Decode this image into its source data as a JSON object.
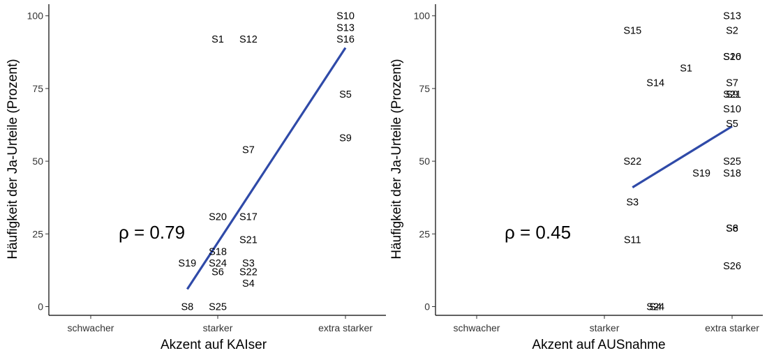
{
  "chart_data": [
    {
      "type": "scatter",
      "xlabel": "Akzent auf KAIser",
      "ylabel": "Häufigkeit der Ja-Urteile (Prozent)",
      "x_categories": [
        "schwacher",
        "starker",
        "extra starker"
      ],
      "y_ticks": [
        0,
        25,
        50,
        75,
        100
      ],
      "ylim": [
        -3,
        104
      ],
      "annotation": "ρ = 0.79",
      "grid": false,
      "points": [
        {
          "label": "S10",
          "x": 2.96,
          "y": 100
        },
        {
          "label": "S13",
          "x": 2.96,
          "y": 96
        },
        {
          "label": "S1",
          "x": 1.0,
          "y": 92
        },
        {
          "label": "S12",
          "x": 1.24,
          "y": 92
        },
        {
          "label": "S16",
          "x": 2.74,
          "y": 92
        },
        {
          "label": "S5",
          "x": 2.96,
          "y": 73
        },
        {
          "label": "S9",
          "x": 2.66,
          "y": 58
        },
        {
          "label": "S7",
          "x": 1.24,
          "y": 54
        },
        {
          "label": "S20",
          "x": 1.0,
          "y": 31
        },
        {
          "label": "S17",
          "x": 1.24,
          "y": 31
        },
        {
          "label": "S21",
          "x": 1.24,
          "y": 23
        },
        {
          "label": "S18",
          "x": 1.0,
          "y": 19
        },
        {
          "label": "S19",
          "x": 0.76,
          "y": 15
        },
        {
          "label": "S24",
          "x": 1.0,
          "y": 15
        },
        {
          "label": "S3",
          "x": 1.24,
          "y": 15
        },
        {
          "label": "S6",
          "x": 1.0,
          "y": 12
        },
        {
          "label": "S22",
          "x": 1.24,
          "y": 12
        },
        {
          "label": "S4",
          "x": 1.24,
          "y": 8
        },
        {
          "label": "S8",
          "x": 0.76,
          "y": 0
        },
        {
          "label": "S25",
          "x": 1.0,
          "y": 0
        }
      ],
      "regression": {
        "x": [
          0.76,
          2.96
        ],
        "y": [
          6,
          89
        ],
        "color": "#2f4aa8"
      }
    },
    {
      "type": "scatter",
      "xlabel": "Akzent auf AUSnahme",
      "ylabel": "Häufigkeit der Ja-Urteile (Prozent)",
      "x_categories": [
        "schwacher",
        "starker",
        "extra starker"
      ],
      "y_ticks": [
        0,
        25,
        50,
        75,
        100
      ],
      "ylim": [
        -3,
        104
      ],
      "annotation": "ρ = 0.45",
      "grid": false,
      "points": [
        {
          "label": "S13",
          "x": 2.0,
          "y": 100
        },
        {
          "label": "S2",
          "x": 2.0,
          "y": 95
        },
        {
          "label": "S15",
          "x": 1.22,
          "y": 95
        },
        {
          "label": "S16",
          "x": 2.0,
          "y": 86
        },
        {
          "label": "S20",
          "x": 2.0,
          "y": 86
        },
        {
          "label": "S1",
          "x": 1.64,
          "y": 82
        },
        {
          "label": "S14",
          "x": 1.4,
          "y": 77
        },
        {
          "label": "S7",
          "x": 2.0,
          "y": 77
        },
        {
          "label": "S9",
          "x": 2.0,
          "y": 73
        },
        {
          "label": "S21",
          "x": 2.0,
          "y": 73
        },
        {
          "label": "S10",
          "x": 2.0,
          "y": 68
        },
        {
          "label": "S5",
          "x": 2.0,
          "y": 63
        },
        {
          "label": "S22",
          "x": 1.22,
          "y": 50
        },
        {
          "label": "S25",
          "x": 2.0,
          "y": 50
        },
        {
          "label": "S19",
          "x": 1.76,
          "y": 46
        },
        {
          "label": "S18",
          "x": 2.0,
          "y": 46
        },
        {
          "label": "S3",
          "x": 1.22,
          "y": 36
        },
        {
          "label": "S6",
          "x": 2.0,
          "y": 27
        },
        {
          "label": "S8",
          "x": 2.0,
          "y": 27
        },
        {
          "label": "S11",
          "x": 1.22,
          "y": 23
        },
        {
          "label": "S26",
          "x": 2.0,
          "y": 14
        },
        {
          "label": "S4",
          "x": 1.4,
          "y": 0
        },
        {
          "label": "S24",
          "x": 1.4,
          "y": 0
        }
      ],
      "regression": {
        "x": [
          1.22,
          2.0
        ],
        "y": [
          41,
          62
        ],
        "color": "#2f4aa8"
      }
    }
  ]
}
